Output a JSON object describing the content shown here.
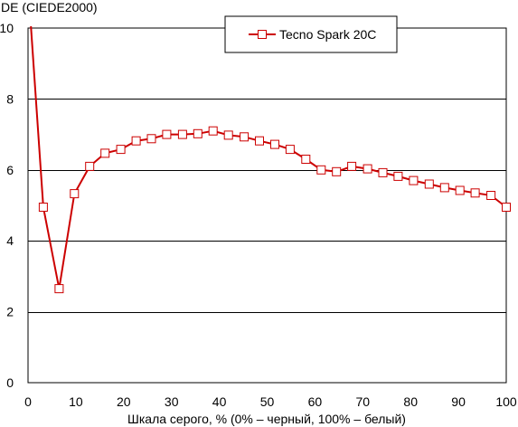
{
  "chart_data": {
    "type": "line",
    "ylabel": "DE (CIEDE2000)",
    "xlabel": "Шкала серого, % (0% – черный, 100% – белый)",
    "xlim": [
      0,
      100
    ],
    "ylim": [
      0,
      10
    ],
    "x_ticks": [
      0,
      10,
      20,
      30,
      40,
      50,
      60,
      70,
      80,
      90,
      100
    ],
    "y_ticks": [
      0,
      2,
      4,
      6,
      8,
      10
    ],
    "grid": "horizontal",
    "legend_position": "top-right",
    "series": [
      {
        "name": "Tecno Spark 20C",
        "color": "#cc0000",
        "marker": "square-open",
        "x": [
          3.2,
          6.5,
          9.7,
          12.9,
          16.1,
          19.4,
          22.6,
          25.8,
          29.0,
          32.3,
          35.5,
          38.7,
          41.9,
          45.2,
          48.4,
          51.6,
          54.8,
          58.1,
          61.3,
          64.5,
          67.7,
          71.0,
          74.2,
          77.4,
          80.6,
          83.9,
          87.1,
          90.3,
          93.5,
          96.8,
          100
        ],
        "y": [
          4.95,
          2.65,
          5.33,
          6.1,
          6.47,
          6.58,
          6.82,
          6.88,
          7.0,
          7.0,
          7.02,
          7.1,
          6.98,
          6.93,
          6.82,
          6.72,
          6.58,
          6.3,
          6.0,
          5.95,
          6.1,
          6.03,
          5.92,
          5.82,
          5.7,
          5.6,
          5.5,
          5.42,
          5.35,
          5.28,
          4.95
        ]
      }
    ],
    "curve_start": {
      "x": 0.6,
      "y": 10.05
    }
  }
}
